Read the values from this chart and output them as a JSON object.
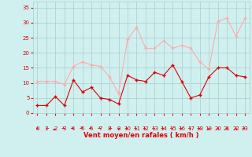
{
  "x": [
    0,
    1,
    2,
    3,
    4,
    5,
    6,
    7,
    8,
    9,
    10,
    11,
    12,
    13,
    14,
    15,
    16,
    17,
    18,
    19,
    20,
    21,
    22,
    23
  ],
  "vent_moyen": [
    2.5,
    2.5,
    5.5,
    2.5,
    11,
    7,
    8.5,
    5,
    4.5,
    3,
    12.5,
    11,
    10.5,
    13.5,
    12.5,
    16,
    10.5,
    5,
    6,
    12,
    15,
    15,
    12.5,
    12
  ],
  "rafales": [
    10.5,
    10.5,
    10.5,
    9.5,
    15.5,
    17,
    16,
    15.5,
    12,
    6.5,
    24.5,
    28.5,
    21.5,
    21.5,
    24,
    21.5,
    22.5,
    21.5,
    17,
    14.5,
    30.5,
    31.5,
    25.5,
    31.5
  ],
  "color_moyen": "#dd0000",
  "color_rafales": "#ffaaaa",
  "bg_color": "#d0f0f0",
  "grid_color": "#aacccc",
  "text_color": "#dd0000",
  "xlabel": "Vent moyen/en rafales ( km/h )",
  "ylim": [
    0,
    37
  ],
  "xlim": [
    -0.5,
    23.5
  ],
  "yticks": [
    0,
    5,
    10,
    15,
    20,
    25,
    30,
    35
  ],
  "xticks": [
    0,
    1,
    2,
    3,
    4,
    5,
    6,
    7,
    8,
    9,
    10,
    11,
    12,
    13,
    14,
    15,
    16,
    17,
    18,
    19,
    20,
    21,
    22,
    23
  ],
  "arrow_angles": [
    90,
    225,
    45,
    315,
    315,
    315,
    315,
    315,
    225,
    270,
    315,
    315,
    315,
    315,
    315,
    315,
    315,
    315,
    315,
    270,
    90,
    90,
    90,
    315
  ]
}
